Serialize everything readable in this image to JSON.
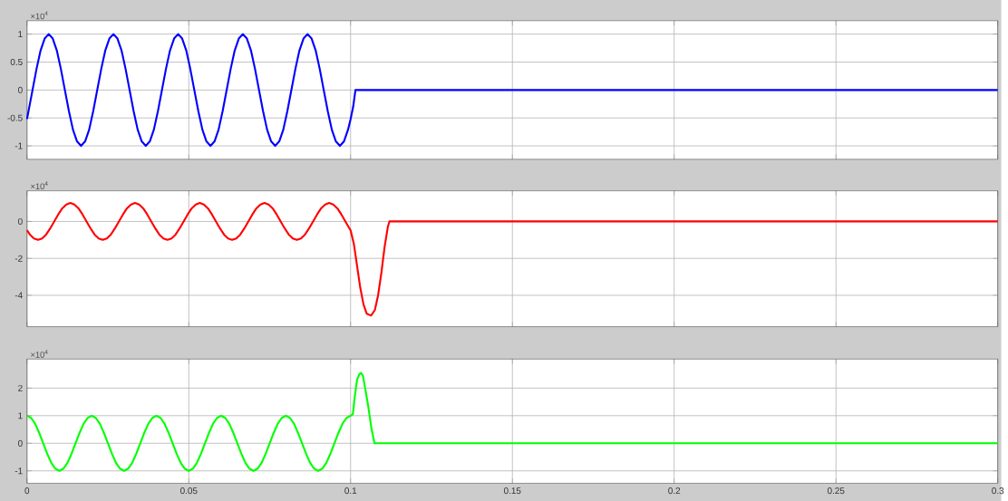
{
  "chart_data": [
    {
      "type": "line",
      "xlim": [
        0,
        0.3
      ],
      "ylim": [
        -1.24,
        1.24
      ],
      "xticks": [
        0,
        0.05,
        0.1,
        0.15,
        0.2,
        0.25,
        0.3
      ],
      "yticks": [
        -1,
        -0.5,
        0,
        0.5,
        1
      ],
      "grid": true,
      "tick_labels": "y",
      "annotations": [
        "×10$^{4}$"
      ],
      "series": [
        {
          "color": "#0000ff",
          "x": [
            0,
            0.0017,
            0.00295,
            0.0042,
            0.00545,
            0.0067,
            0.00795,
            0.0092,
            0.01045,
            0.0117,
            0.01295,
            0.0142,
            0.01545,
            0.0167,
            0.01795,
            0.0192,
            0.02045,
            0.0217,
            0.02295,
            0.0242,
            0.02545,
            0.0267,
            0.02795,
            0.0292,
            0.03045,
            0.0317,
            0.03295,
            0.0342,
            0.03545,
            0.0367,
            0.03795,
            0.0392,
            0.04045,
            0.0417,
            0.04295,
            0.0442,
            0.04545,
            0.0467,
            0.04795,
            0.0492,
            0.05045,
            0.0517,
            0.05295,
            0.0542,
            0.05545,
            0.0567,
            0.05795,
            0.0592,
            0.06045,
            0.0617,
            0.06295,
            0.0642,
            0.06545,
            0.0667,
            0.06795,
            0.0692,
            0.07045,
            0.0717,
            0.07295,
            0.0742,
            0.07545,
            0.0767,
            0.07795,
            0.0792,
            0.08045,
            0.0817,
            0.08295,
            0.0842,
            0.08545,
            0.0867,
            0.08795,
            0.0892,
            0.09045,
            0.0917,
            0.09295,
            0.0942,
            0.09545,
            0.0967,
            0.09795,
            0.0992,
            0.1,
            0.1008,
            0.1015,
            0.3
          ],
          "values": [
            -0.52,
            0,
            0.38,
            0.71,
            0.92,
            1,
            0.92,
            0.71,
            0.38,
            0,
            -0.38,
            -0.71,
            -0.92,
            -1,
            -0.92,
            -0.71,
            -0.38,
            0,
            0.38,
            0.71,
            0.92,
            1,
            0.92,
            0.71,
            0.38,
            0,
            -0.38,
            -0.71,
            -0.92,
            -1,
            -0.92,
            -0.71,
            -0.38,
            0,
            0.38,
            0.71,
            0.92,
            1,
            0.92,
            0.71,
            0.38,
            0,
            -0.38,
            -0.71,
            -0.92,
            -1,
            -0.92,
            -0.71,
            -0.38,
            0,
            0.38,
            0.71,
            0.92,
            1,
            0.92,
            0.71,
            0.38,
            0,
            -0.38,
            -0.71,
            -0.92,
            -1,
            -0.92,
            -0.71,
            -0.38,
            0,
            0.38,
            0.71,
            0.92,
            1,
            0.92,
            0.71,
            0.38,
            0,
            -0.38,
            -0.71,
            -0.92,
            -1,
            -0.92,
            -0.71,
            -0.52,
            -0.3,
            0,
            0
          ]
        }
      ]
    },
    {
      "type": "line",
      "xlim": [
        0,
        0.3
      ],
      "ylim": [
        -5.7,
        1.66
      ],
      "xticks": [
        0,
        0.05,
        0.1,
        0.15,
        0.2,
        0.25,
        0.3
      ],
      "yticks": [
        -4,
        -2,
        0
      ],
      "grid": true,
      "tick_labels": "y",
      "annotations": [
        "×10$^{4}$"
      ],
      "series": [
        {
          "color": "#ff0000",
          "x": [
            0,
            0.0009,
            0.00215,
            0.0034,
            0.00465,
            0.0059,
            0.00715,
            0.0084,
            0.00965,
            0.0109,
            0.01215,
            0.0134,
            0.01465,
            0.0159,
            0.01715,
            0.0184,
            0.01965,
            0.0209,
            0.02215,
            0.0234,
            0.02465,
            0.0259,
            0.02715,
            0.0284,
            0.02965,
            0.0309,
            0.03215,
            0.0334,
            0.03465,
            0.0359,
            0.03715,
            0.0384,
            0.03965,
            0.0409,
            0.04215,
            0.0434,
            0.04465,
            0.0459,
            0.04715,
            0.0484,
            0.04965,
            0.0509,
            0.05215,
            0.0534,
            0.05465,
            0.0559,
            0.05715,
            0.0584,
            0.05965,
            0.0609,
            0.06215,
            0.0634,
            0.06465,
            0.0659,
            0.06715,
            0.0684,
            0.06965,
            0.0709,
            0.07215,
            0.0734,
            0.07465,
            0.0759,
            0.07715,
            0.0784,
            0.07965,
            0.0809,
            0.08215,
            0.0834,
            0.08465,
            0.0859,
            0.08715,
            0.0884,
            0.08965,
            0.0909,
            0.09215,
            0.0934,
            0.09465,
            0.0959,
            0.09715,
            0.0984,
            0.09965,
            0.1,
            0.101,
            0.102,
            0.103,
            0.104,
            0.105,
            0.1063,
            0.1075,
            0.1085,
            0.1095,
            0.1105,
            0.1115,
            0.112,
            0.3
          ],
          "values": [
            -0.48,
            -0.71,
            -0.92,
            -1,
            -0.92,
            -0.71,
            -0.38,
            0,
            0.38,
            0.71,
            0.92,
            1,
            0.92,
            0.71,
            0.38,
            0,
            -0.38,
            -0.71,
            -0.92,
            -1,
            -0.92,
            -0.71,
            -0.38,
            0,
            0.38,
            0.71,
            0.92,
            1,
            0.92,
            0.71,
            0.38,
            0,
            -0.38,
            -0.71,
            -0.92,
            -1,
            -0.92,
            -0.71,
            -0.38,
            0,
            0.38,
            0.71,
            0.92,
            1,
            0.92,
            0.71,
            0.38,
            0,
            -0.38,
            -0.71,
            -0.92,
            -1,
            -0.92,
            -0.71,
            -0.38,
            0,
            0.38,
            0.71,
            0.92,
            1,
            0.92,
            0.71,
            0.38,
            0,
            -0.38,
            -0.71,
            -0.92,
            -1,
            -0.92,
            -0.71,
            -0.38,
            0,
            0.38,
            0.71,
            0.92,
            1,
            0.92,
            0.71,
            0.38,
            0,
            -0.38,
            -0.48,
            -1.2,
            -2.4,
            -3.6,
            -4.5,
            -5,
            -5.1,
            -4.8,
            -4,
            -2.8,
            -1.4,
            -0.3,
            0,
            0
          ]
        }
      ]
    },
    {
      "type": "line",
      "xlim": [
        0,
        0.3
      ],
      "ylim": [
        -1.45,
        3.05
      ],
      "xticks": [
        0,
        0.05,
        0.1,
        0.15,
        0.2,
        0.25,
        0.3
      ],
      "yticks": [
        -1,
        0,
        1,
        2
      ],
      "grid": true,
      "annotations": [
        "×10$^{4}$"
      ],
      "series": [
        {
          "color": "#00ff00",
          "x": [
            0,
            0.00125,
            0.0025,
            0.00375,
            0.005,
            0.00625,
            0.0075,
            0.00875,
            0.01,
            0.01125,
            0.0125,
            0.01375,
            0.015,
            0.01625,
            0.0175,
            0.01875,
            0.02,
            0.02125,
            0.0225,
            0.02375,
            0.025,
            0.02625,
            0.0275,
            0.02875,
            0.03,
            0.03125,
            0.0325,
            0.03375,
            0.035,
            0.03625,
            0.0375,
            0.03875,
            0.04,
            0.04125,
            0.0425,
            0.04375,
            0.045,
            0.04625,
            0.0475,
            0.04875,
            0.05,
            0.05125,
            0.0525,
            0.05375,
            0.055,
            0.05625,
            0.0575,
            0.05875,
            0.06,
            0.06125,
            0.0625,
            0.06375,
            0.065,
            0.06625,
            0.0675,
            0.06875,
            0.07,
            0.07125,
            0.0725,
            0.07375,
            0.075,
            0.07625,
            0.0775,
            0.07875,
            0.08,
            0.08125,
            0.0825,
            0.08375,
            0.085,
            0.08625,
            0.0875,
            0.08875,
            0.09,
            0.09125,
            0.0925,
            0.09375,
            0.095,
            0.09625,
            0.0975,
            0.09875,
            0.1,
            0.1007,
            0.1013,
            0.102,
            0.1027,
            0.1032,
            0.1038,
            0.1045,
            0.1055,
            0.1065,
            0.1074,
            0.3
          ],
          "values": [
            1,
            0.92,
            0.71,
            0.38,
            0,
            -0.38,
            -0.71,
            -0.92,
            -1,
            -0.92,
            -0.71,
            -0.38,
            0,
            0.38,
            0.71,
            0.92,
            1,
            0.92,
            0.71,
            0.38,
            0,
            -0.38,
            -0.71,
            -0.92,
            -1,
            -0.92,
            -0.71,
            -0.38,
            0,
            0.38,
            0.71,
            0.92,
            1,
            0.92,
            0.71,
            0.38,
            0,
            -0.38,
            -0.71,
            -0.92,
            -1,
            -0.92,
            -0.71,
            -0.38,
            0,
            0.38,
            0.71,
            0.92,
            1,
            0.92,
            0.71,
            0.38,
            0,
            -0.38,
            -0.71,
            -0.92,
            -1,
            -0.92,
            -0.71,
            -0.38,
            0,
            0.38,
            0.71,
            0.92,
            1,
            0.92,
            0.71,
            0.38,
            0,
            -0.38,
            -0.71,
            -0.92,
            -1,
            -0.92,
            -0.71,
            -0.38,
            0,
            0.38,
            0.71,
            0.92,
            1,
            1.05,
            1.7,
            2.3,
            2.5,
            2.55,
            2.45,
            2,
            1.3,
            0.5,
            0,
            0
          ]
        }
      ]
    }
  ]
}
